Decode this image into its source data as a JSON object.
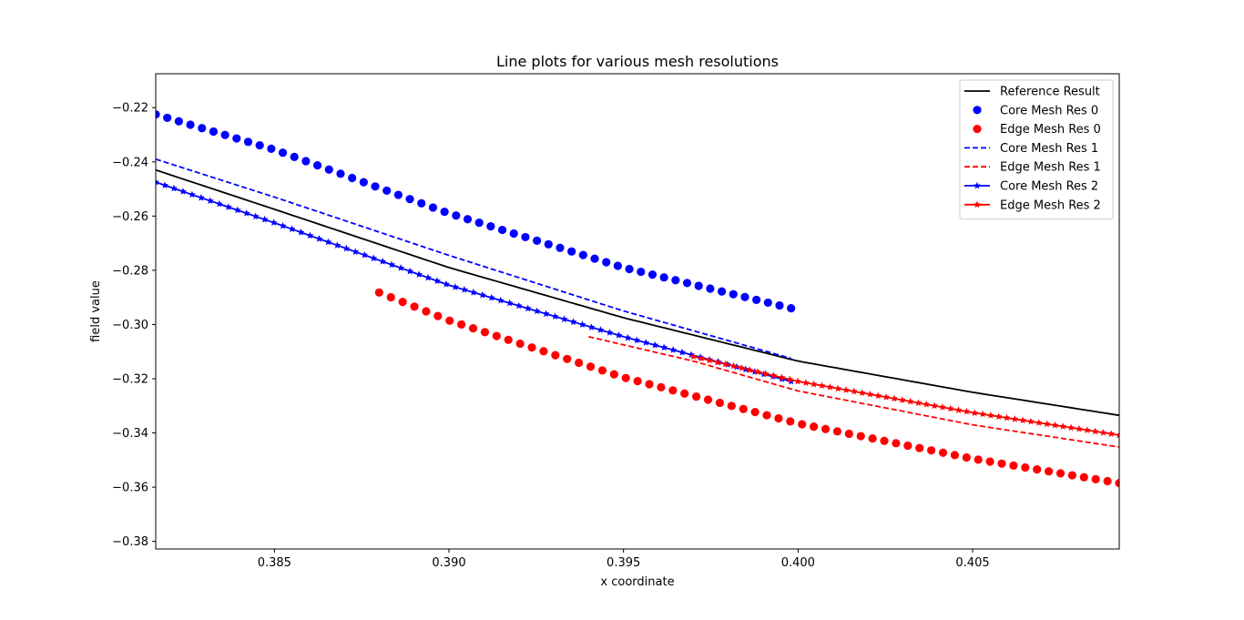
{
  "chart_data": {
    "type": "line",
    "title": "Line plots for various mesh resolutions",
    "xlabel": "x coordinate",
    "ylabel": "field value",
    "xlim": [
      0.3816,
      0.4092
    ],
    "ylim": [
      -0.3828,
      -0.2075
    ],
    "xticks": [
      0.385,
      0.39,
      0.395,
      0.4,
      0.405
    ],
    "xtick_labels": [
      "0.385",
      "0.390",
      "0.395",
      "0.400",
      "0.405"
    ],
    "yticks": [
      -0.22,
      -0.24,
      -0.26,
      -0.28,
      -0.3,
      -0.32,
      -0.34,
      -0.36,
      -0.38
    ],
    "ytick_labels": [
      "−0.22",
      "−0.24",
      "−0.26",
      "−0.28",
      "−0.30",
      "−0.32",
      "−0.34",
      "−0.36",
      "−0.38"
    ],
    "grid": false,
    "legend_position": "top-right",
    "series": [
      {
        "name": "Reference Result",
        "color": "#000000",
        "style": "solid",
        "marker": "none",
        "x": [
          0.3816,
          0.385,
          0.39,
          0.395,
          0.4,
          0.405,
          0.4092
        ],
        "y": [
          -0.243,
          -0.2575,
          -0.279,
          -0.2975,
          -0.3135,
          -0.325,
          -0.3335
        ]
      },
      {
        "name": "Core Mesh Res 0",
        "color": "#0000ff",
        "style": "none",
        "marker": "circle",
        "count": 56,
        "x": [
          0.3816,
          0.385,
          0.39,
          0.395,
          0.3998
        ],
        "y": [
          -0.2225,
          -0.2355,
          -0.259,
          -0.279,
          -0.294
        ]
      },
      {
        "name": "Edge Mesh Res 0",
        "color": "#ff0000",
        "style": "none",
        "marker": "circle",
        "count": 64,
        "x": [
          0.388,
          0.39,
          0.395,
          0.4,
          0.405,
          0.4092
        ],
        "y": [
          -0.2882,
          -0.2985,
          -0.3195,
          -0.3365,
          -0.3495,
          -0.3585
        ]
      },
      {
        "name": "Core Mesh Res 1",
        "color": "#0000ff",
        "style": "dashed",
        "marker": "none",
        "x": [
          0.3816,
          0.385,
          0.39,
          0.395,
          0.3998
        ],
        "y": [
          -0.239,
          -0.253,
          -0.2745,
          -0.295,
          -0.3125
        ]
      },
      {
        "name": "Edge Mesh Res 1",
        "color": "#ff0000",
        "style": "dashed",
        "marker": "none",
        "x": [
          0.394,
          0.397,
          0.4,
          0.405,
          0.4092
        ],
        "y": [
          -0.3045,
          -0.3135,
          -0.3245,
          -0.337,
          -0.3452
        ]
      },
      {
        "name": "Core Mesh Res 2",
        "color": "#0000ff",
        "style": "solid",
        "marker": "star",
        "count": 71,
        "x": [
          0.3816,
          0.385,
          0.39,
          0.395,
          0.3998
        ],
        "y": [
          -0.2475,
          -0.2625,
          -0.2855,
          -0.3045,
          -0.321
        ]
      },
      {
        "name": "Edge Mesh Res 2",
        "color": "#ff0000",
        "style": "solid",
        "marker": "star",
        "count": 54,
        "x": [
          0.397,
          0.4,
          0.405,
          0.4092
        ],
        "y": [
          -0.3118,
          -0.321,
          -0.3325,
          -0.3408
        ]
      }
    ]
  }
}
